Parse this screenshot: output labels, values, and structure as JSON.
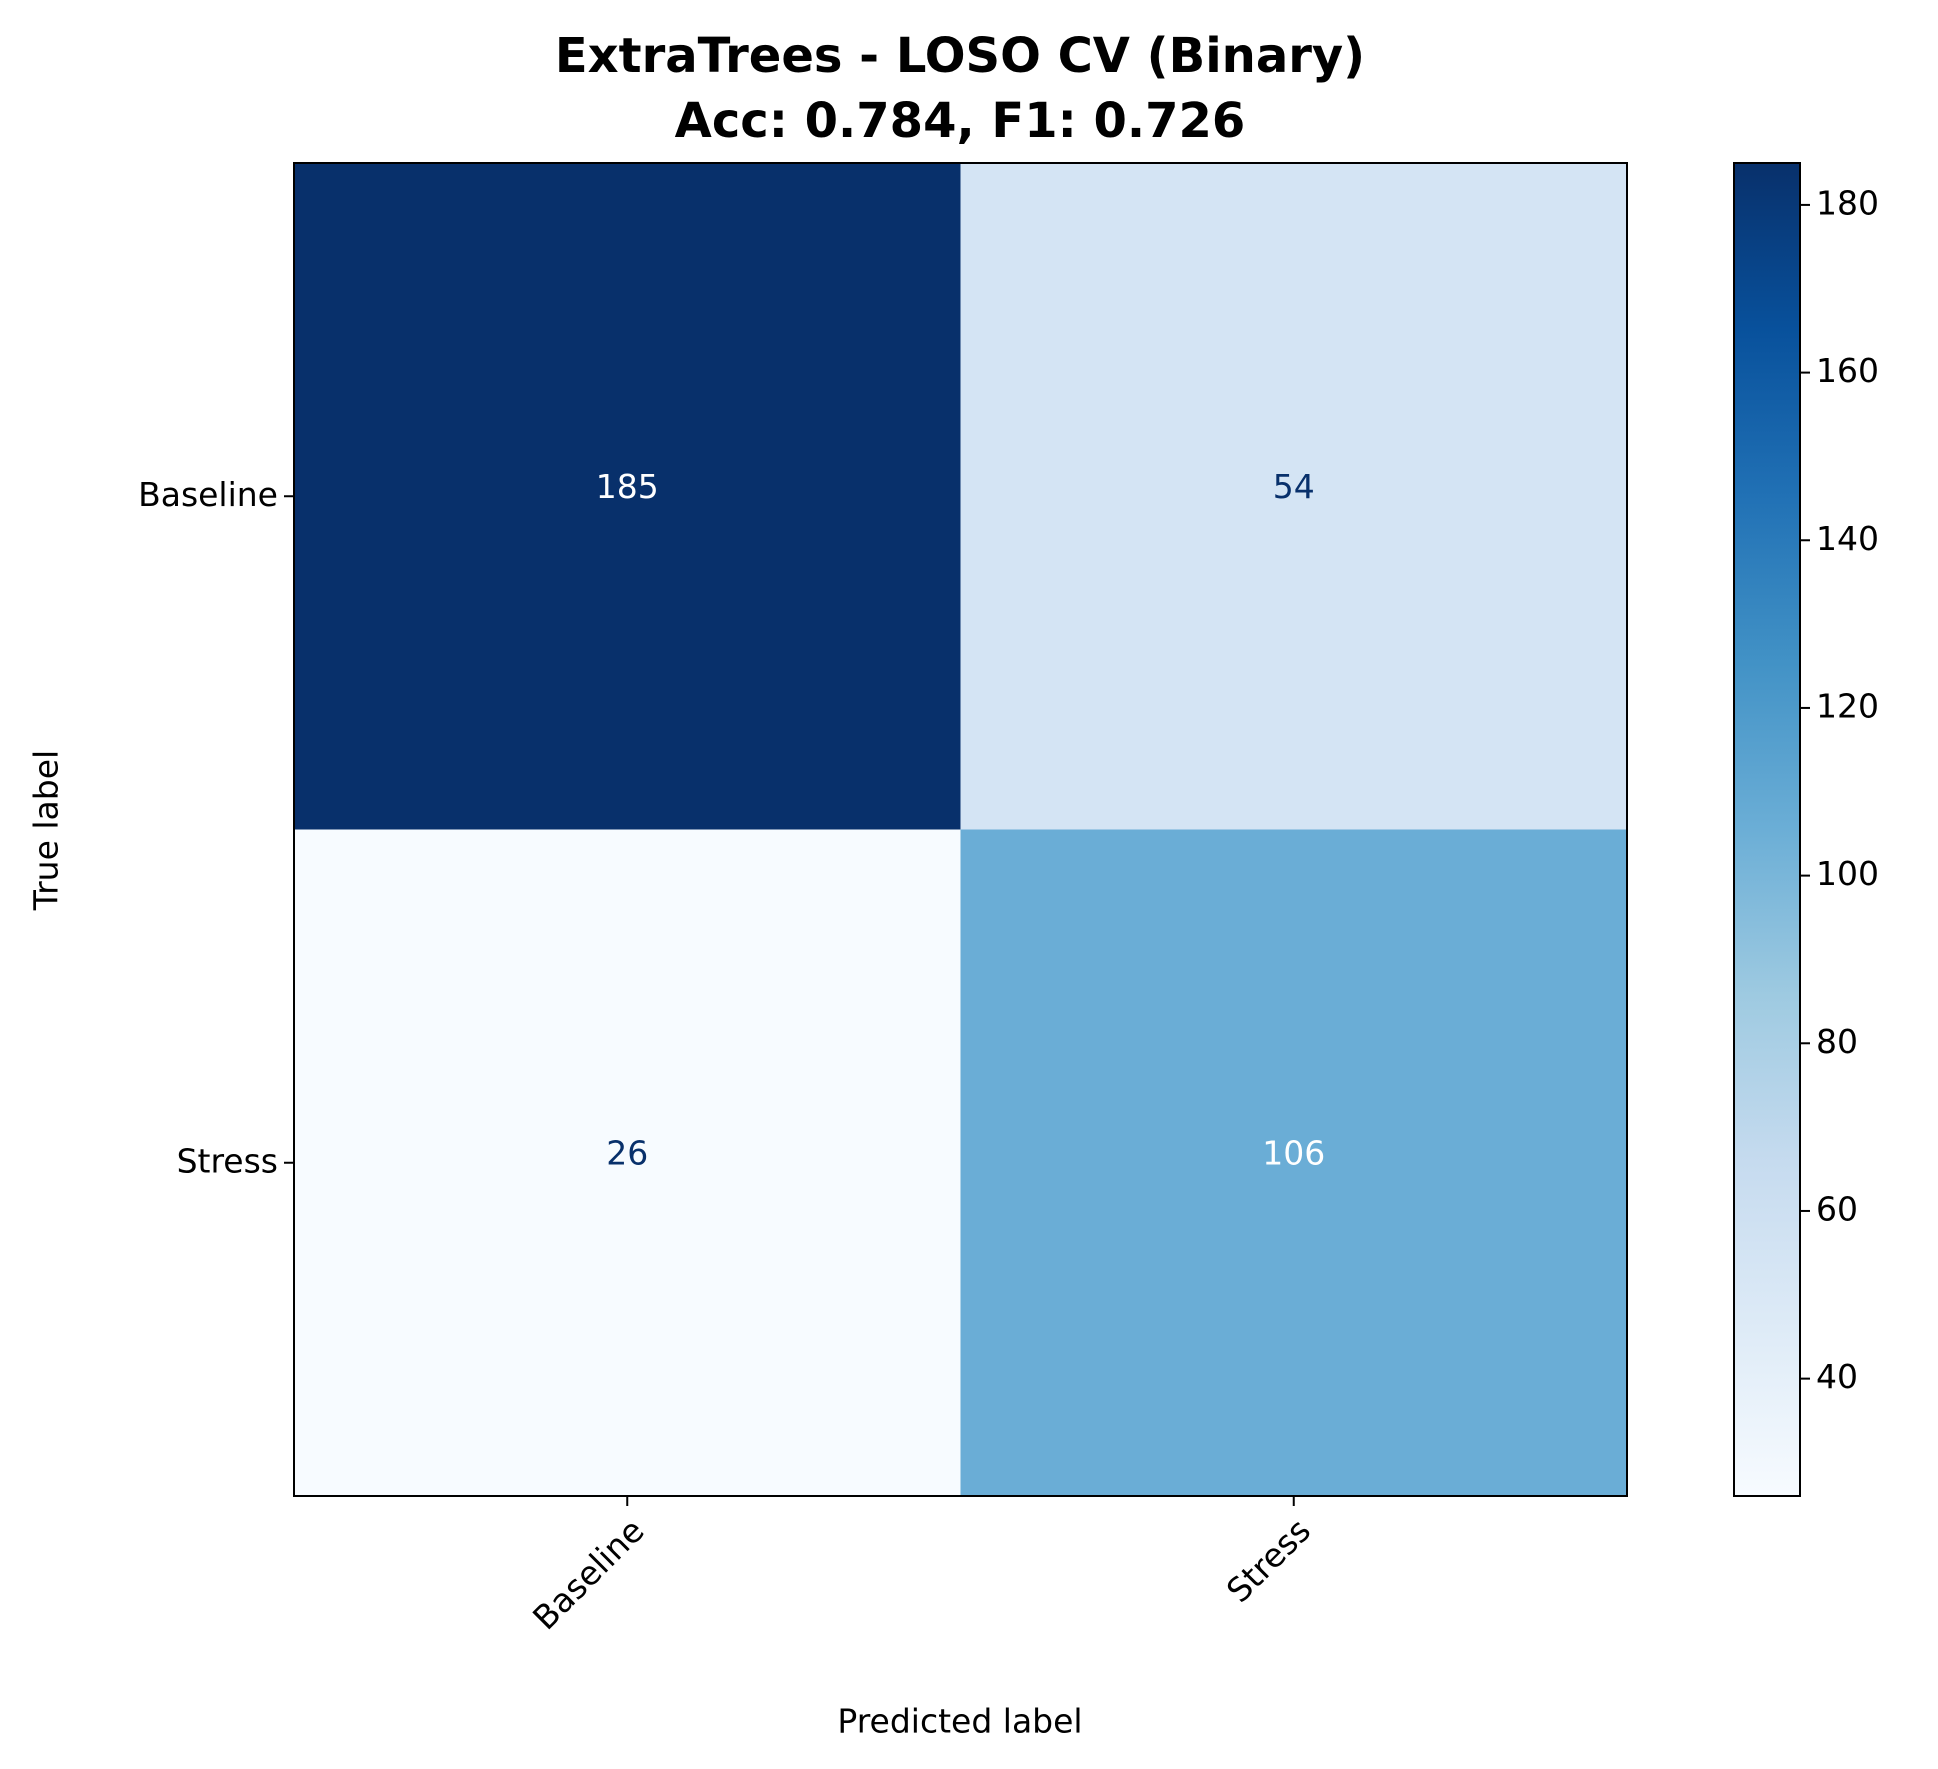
{
  "chart_data": {
    "type": "heatmap",
    "title": "ExtraTrees - LOSO CV (Binary)",
    "subtitle": "Acc: 0.784, F1: 0.726",
    "x_label": "Predicted label",
    "y_label": "True label",
    "x_categories": [
      "Baseline",
      "Stress"
    ],
    "y_categories": [
      "Baseline",
      "Stress"
    ],
    "values": [
      [
        185,
        54
      ],
      [
        26,
        106
      ]
    ],
    "cmap": "Blues",
    "clim": [
      26,
      185
    ],
    "cticks": [
      40,
      60,
      80,
      100,
      120,
      140,
      160,
      180
    ]
  }
}
